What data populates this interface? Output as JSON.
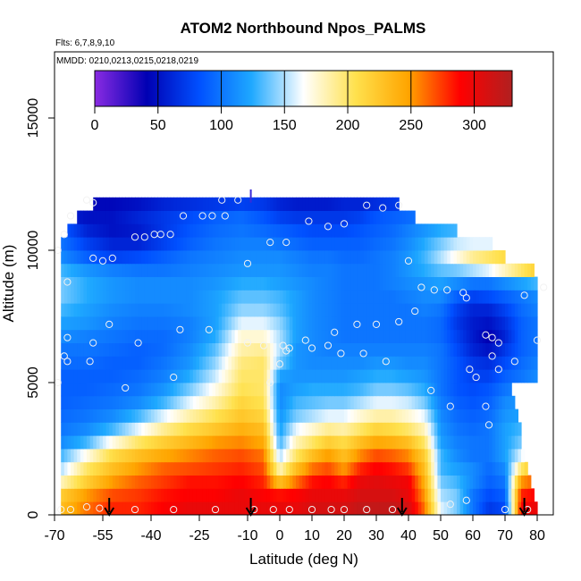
{
  "chart_data": {
    "type": "heatmap",
    "title": "ATOM2 Northbound Npos_PALMS",
    "flights_label": "Flts: 6,7,8,9,10",
    "dates_label": "MMDD: 0210,0213,0215,0218,0219",
    "xlabel": "Latitude (deg N)",
    "ylabel": "Altitude (m)",
    "xlim": [
      -70,
      85
    ],
    "ylim": [
      0,
      17500
    ],
    "x_ticks": [
      -70,
      -55,
      -40,
      -25,
      -10,
      0,
      10,
      20,
      30,
      40,
      50,
      60,
      70,
      80
    ],
    "y_ticks": [
      0,
      5000,
      10000,
      15000
    ],
    "colorbar": {
      "min": 0,
      "max": 330,
      "ticks": [
        0,
        50,
        100,
        150,
        200,
        250,
        300
      ],
      "colors": [
        "#8a2be2",
        "#0000b3",
        "#0050ff",
        "#1ea8ff",
        "#ffffff",
        "#ffe14d",
        "#ffa500",
        "#ff0000",
        "#b02020"
      ]
    },
    "grid": false,
    "alt_bands_m": [
      250,
      750,
      1250,
      1750,
      2250,
      2750,
      3250,
      3750,
      4250,
      4750,
      5250,
      5750,
      6250,
      6750,
      7250,
      7750,
      8250,
      8750,
      9250,
      9750,
      10250,
      10750,
      11250,
      11750
    ],
    "coverage_lat_by_band": [
      [
        -68,
        80
      ],
      [
        -68,
        79
      ],
      [
        -68,
        78
      ],
      [
        -68,
        77
      ],
      [
        -68,
        76
      ],
      [
        -68,
        75
      ],
      [
        -68,
        75
      ],
      [
        -68,
        74
      ],
      [
        -68,
        73
      ],
      [
        -68,
        72
      ],
      [
        -68,
        80
      ],
      [
        -68,
        80
      ],
      [
        -68,
        80
      ],
      [
        -68,
        80
      ],
      [
        -68,
        80
      ],
      [
        -68,
        80
      ],
      [
        -68,
        80
      ],
      [
        -68,
        80
      ],
      [
        -68,
        79
      ],
      [
        -68,
        70
      ],
      [
        -68,
        66
      ],
      [
        -66,
        55
      ],
      [
        -63,
        42
      ],
      [
        -58,
        37
      ]
    ],
    "field_key_lat": [
      -68,
      -60,
      -52,
      -44,
      -36,
      -28,
      -20,
      -12,
      -5,
      0,
      5,
      10,
      15,
      20,
      25,
      30,
      35,
      40,
      45,
      50,
      55,
      60,
      65,
      70,
      75,
      80
    ],
    "field_values": [
      [
        230,
        260,
        280,
        280,
        290,
        300,
        300,
        300,
        300,
        300,
        300,
        310,
        310,
        310,
        320,
        320,
        320,
        310,
        260,
        160,
        140,
        100,
        70,
        80,
        290,
        300
      ],
      [
        220,
        250,
        270,
        275,
        285,
        290,
        290,
        300,
        290,
        285,
        290,
        300,
        300,
        300,
        310,
        310,
        310,
        300,
        250,
        150,
        140,
        100,
        80,
        90,
        280,
        290
      ],
      [
        180,
        220,
        250,
        265,
        275,
        285,
        285,
        290,
        280,
        230,
        260,
        285,
        290,
        280,
        300,
        305,
        300,
        295,
        240,
        140,
        130,
        110,
        90,
        100,
        250,
        270
      ],
      [
        150,
        200,
        230,
        250,
        265,
        270,
        275,
        280,
        270,
        180,
        230,
        260,
        270,
        250,
        280,
        290,
        285,
        275,
        230,
        130,
        120,
        110,
        95,
        110,
        200,
        240
      ],
      [
        130,
        170,
        210,
        230,
        245,
        255,
        265,
        270,
        260,
        150,
        200,
        230,
        250,
        230,
        255,
        270,
        265,
        255,
        220,
        130,
        110,
        100,
        100,
        120,
        160,
        200
      ],
      [
        110,
        130,
        170,
        200,
        220,
        235,
        250,
        255,
        245,
        130,
        180,
        200,
        220,
        210,
        230,
        245,
        240,
        230,
        200,
        120,
        105,
        100,
        100,
        120,
        140,
        170
      ],
      [
        100,
        110,
        130,
        160,
        190,
        210,
        225,
        240,
        230,
        120,
        160,
        175,
        190,
        185,
        200,
        215,
        210,
        200,
        180,
        115,
        100,
        95,
        100,
        120,
        130,
        150
      ],
      [
        95,
        100,
        110,
        130,
        160,
        185,
        205,
        225,
        215,
        115,
        140,
        150,
        160,
        160,
        175,
        185,
        185,
        175,
        160,
        110,
        95,
        90,
        95,
        115,
        120,
        130
      ],
      [
        90,
        95,
        100,
        110,
        130,
        160,
        185,
        215,
        205,
        110,
        130,
        135,
        140,
        140,
        150,
        160,
        160,
        155,
        140,
        105,
        90,
        85,
        90,
        110,
        115,
        120
      ],
      [
        90,
        90,
        95,
        100,
        115,
        140,
        170,
        205,
        200,
        110,
        120,
        125,
        125,
        125,
        130,
        140,
        140,
        135,
        125,
        100,
        85,
        80,
        85,
        100,
        110,
        115
      ],
      [
        90,
        90,
        90,
        95,
        105,
        125,
        155,
        200,
        200,
        120,
        115,
        115,
        115,
        115,
        120,
        125,
        125,
        120,
        115,
        100,
        85,
        75,
        75,
        90,
        100,
        110
      ],
      [
        95,
        95,
        90,
        90,
        100,
        115,
        145,
        195,
        200,
        140,
        115,
        110,
        110,
        110,
        110,
        115,
        115,
        110,
        110,
        100,
        85,
        70,
        65,
        80,
        95,
        105
      ],
      [
        100,
        100,
        95,
        90,
        95,
        110,
        135,
        185,
        190,
        150,
        115,
        110,
        105,
        105,
        105,
        105,
        105,
        105,
        105,
        100,
        80,
        60,
        50,
        70,
        90,
        100
      ],
      [
        110,
        105,
        100,
        95,
        95,
        105,
        125,
        175,
        175,
        150,
        120,
        110,
        105,
        100,
        100,
        100,
        100,
        100,
        100,
        95,
        75,
        55,
        40,
        60,
        90,
        100
      ],
      [
        120,
        115,
        105,
        100,
        100,
        105,
        120,
        160,
        160,
        145,
        120,
        110,
        105,
        100,
        100,
        100,
        100,
        100,
        100,
        95,
        70,
        55,
        50,
        65,
        90,
        100
      ],
      [
        130,
        120,
        110,
        105,
        105,
        110,
        120,
        145,
        145,
        135,
        120,
        110,
        105,
        100,
        100,
        100,
        100,
        100,
        105,
        100,
        75,
        60,
        60,
        75,
        95,
        105
      ],
      [
        140,
        125,
        115,
        110,
        110,
        110,
        120,
        135,
        135,
        130,
        120,
        110,
        105,
        100,
        100,
        100,
        100,
        105,
        110,
        110,
        90,
        75,
        80,
        90,
        100,
        110
      ],
      [
        140,
        125,
        115,
        110,
        110,
        110,
        115,
        125,
        125,
        120,
        115,
        110,
        105,
        100,
        100,
        100,
        105,
        110,
        115,
        120,
        110,
        100,
        100,
        110,
        120,
        130
      ],
      [
        130,
        115,
        105,
        100,
        100,
        105,
        110,
        115,
        115,
        115,
        110,
        105,
        105,
        100,
        100,
        100,
        105,
        115,
        125,
        135,
        140,
        150,
        160,
        180,
        200,
        220
      ],
      [
        110,
        90,
        75,
        80,
        90,
        100,
        105,
        110,
        110,
        110,
        105,
        100,
        100,
        95,
        95,
        100,
        105,
        115,
        130,
        150,
        170,
        190,
        200,
        210,
        215,
        215
      ],
      [
        100,
        75,
        60,
        60,
        75,
        90,
        100,
        105,
        105,
        100,
        95,
        90,
        90,
        90,
        90,
        95,
        100,
        110,
        125,
        140,
        155,
        160,
        160,
        160,
        160,
        160
      ],
      [
        90,
        60,
        50,
        55,
        70,
        85,
        95,
        100,
        95,
        90,
        85,
        80,
        80,
        80,
        85,
        90,
        95,
        105,
        115,
        125,
        130,
        130,
        130,
        130,
        130,
        130
      ],
      [
        60,
        50,
        50,
        60,
        70,
        80,
        90,
        95,
        85,
        75,
        70,
        70,
        70,
        70,
        75,
        85,
        90,
        95,
        100,
        105,
        105,
        105,
        105,
        105,
        105,
        105
      ],
      [
        50,
        45,
        45,
        50,
        60,
        65,
        70,
        75,
        70,
        60,
        55,
        55,
        55,
        60,
        60,
        65,
        70,
        75,
        80,
        80,
        80,
        80,
        80,
        80,
        80,
        80
      ]
    ],
    "observation_points": [
      [
        -68,
        200
      ],
      [
        -65,
        200
      ],
      [
        -60,
        300
      ],
      [
        -56,
        250
      ],
      [
        -45,
        200
      ],
      [
        -33,
        200
      ],
      [
        -20,
        200
      ],
      [
        -8,
        200
      ],
      [
        -2,
        200
      ],
      [
        3,
        200
      ],
      [
        10,
        200
      ],
      [
        16,
        200
      ],
      [
        20,
        200
      ],
      [
        27,
        200
      ],
      [
        35,
        200
      ],
      [
        53,
        400
      ],
      [
        58,
        550
      ],
      [
        70,
        200
      ],
      [
        77,
        200
      ],
      [
        -48,
        4800
      ],
      [
        -66,
        5800
      ],
      [
        -59,
        5800
      ],
      [
        -33,
        5200
      ],
      [
        -3,
        5000
      ],
      [
        0,
        5700
      ],
      [
        2,
        6200
      ],
      [
        3,
        6300
      ],
      [
        10,
        6300
      ],
      [
        15,
        6400
      ],
      [
        19,
        6100
      ],
      [
        26,
        6100
      ],
      [
        33,
        5800
      ],
      [
        47,
        4700
      ],
      [
        53,
        4100
      ],
      [
        59,
        5500
      ],
      [
        61,
        5200
      ],
      [
        64,
        4100
      ],
      [
        65,
        3400
      ],
      [
        66,
        6000
      ],
      [
        68,
        5500
      ],
      [
        73,
        5800
      ],
      [
        80,
        6600
      ],
      [
        -69,
        5000
      ],
      [
        -67,
        6000
      ],
      [
        -66,
        6700
      ],
      [
        -58,
        6500
      ],
      [
        -53,
        7200
      ],
      [
        -44,
        6500
      ],
      [
        -31,
        7000
      ],
      [
        -22,
        7000
      ],
      [
        -10,
        6500
      ],
      [
        -5,
        6400
      ],
      [
        1,
        6400
      ],
      [
        8,
        6600
      ],
      [
        17,
        6900
      ],
      [
        24,
        7200
      ],
      [
        30,
        7200
      ],
      [
        37,
        7300
      ],
      [
        42,
        7700
      ],
      [
        58,
        8200
      ],
      [
        64,
        6800
      ],
      [
        66,
        6700
      ],
      [
        68,
        6500
      ],
      [
        -66,
        8800
      ],
      [
        -58,
        9700
      ],
      [
        -55,
        9600
      ],
      [
        -52,
        9700
      ],
      [
        -45,
        10500
      ],
      [
        -42,
        10500
      ],
      [
        -39,
        10600
      ],
      [
        -37,
        10600
      ],
      [
        -34,
        10600
      ],
      [
        -30,
        11300
      ],
      [
        -24,
        11300
      ],
      [
        -21,
        11300
      ],
      [
        -17,
        11300
      ],
      [
        -18,
        11900
      ],
      [
        -13,
        11900
      ],
      [
        -10,
        9500
      ],
      [
        -3,
        10300
      ],
      [
        2,
        10300
      ],
      [
        9,
        11100
      ],
      [
        15,
        10900
      ],
      [
        20,
        11000
      ],
      [
        27,
        11700
      ],
      [
        32,
        11600
      ],
      [
        37,
        11700
      ],
      [
        40,
        9600
      ],
      [
        44,
        8600
      ],
      [
        48,
        8500
      ],
      [
        52,
        8500
      ],
      [
        57,
        8400
      ],
      [
        76,
        8300
      ],
      [
        82,
        8600
      ],
      [
        -69,
        10000
      ],
      [
        -67,
        10600
      ],
      [
        -65,
        11300
      ],
      [
        -60,
        11900
      ],
      [
        -58,
        11800
      ]
    ],
    "flight_markers_lat": [
      -53,
      -9,
      38,
      76
    ],
    "purple_spike_lat": -9,
    "purple_spike_alt": [
      11800,
      12300
    ]
  }
}
